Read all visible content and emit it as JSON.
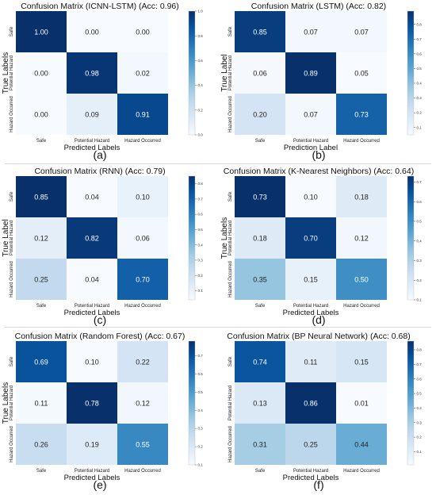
{
  "class_labels": [
    "Safe",
    "Potential Hazard",
    "Hazard Occurred"
  ],
  "colors": {
    "cmap_low": "#f7fbff",
    "cmap_high": "#08306b",
    "light_text": "#ffffff",
    "dark_text": "#222222"
  },
  "chart_data": [
    {
      "type": "heatmap",
      "title": "Confusion Matrix (ICNN-LSTM) (Acc: 0.96)",
      "xlabel": "Predicted Labels",
      "ylabel": "True Labels",
      "caption": "(a)",
      "x_categories": [
        "Safe",
        "Potential Hazard",
        "Hazard Occurred"
      ],
      "y_categories": [
        "Safe",
        "Potential Hazard",
        "Hazard Occurred"
      ],
      "values": [
        [
          1.0,
          0.0,
          0.0
        ],
        [
          0.0,
          0.98,
          0.02
        ],
        [
          0.0,
          0.09,
          0.91
        ]
      ],
      "colorbar": {
        "min": 0.0,
        "max": 1.0,
        "ticks": [
          "0.0",
          "0.2",
          "0.4",
          "0.6",
          "0.8",
          "1.0"
        ]
      }
    },
    {
      "type": "heatmap",
      "title": "Confusion Matrix (LSTM) (Acc: 0.82)",
      "xlabel": "Prediction Label",
      "ylabel": "True Label",
      "caption": "(b)",
      "x_categories": [
        "Safe",
        "Potential Hazard",
        "Hazard Occurred"
      ],
      "y_categories": [
        "Safe",
        "Potential Hazard",
        "Hazard Occurred"
      ],
      "values": [
        [
          0.85,
          0.07,
          0.07
        ],
        [
          0.06,
          0.89,
          0.05
        ],
        [
          0.2,
          0.07,
          0.73
        ]
      ],
      "colorbar": {
        "min": 0.05,
        "max": 0.89,
        "ticks": [
          "0.1",
          "0.2",
          "0.3",
          "0.4",
          "0.5",
          "0.6",
          "0.7",
          "0.8"
        ]
      }
    },
    {
      "type": "heatmap",
      "title": "Confusion Matrix (RNN) (Acc: 0.79)",
      "xlabel": "Predicted Labels",
      "ylabel": "True Label",
      "caption": "(c)",
      "x_categories": [
        "Safe",
        "Potential Hazard",
        "Hazard Occurred"
      ],
      "y_categories": [
        "Safe",
        "Potential Hazard",
        "Hazard Occurred"
      ],
      "values": [
        [
          0.85,
          0.04,
          0.1
        ],
        [
          0.12,
          0.82,
          0.06
        ],
        [
          0.25,
          0.04,
          0.7
        ]
      ],
      "colorbar": {
        "min": 0.04,
        "max": 0.85,
        "ticks": [
          "0.1",
          "0.2",
          "0.3",
          "0.4",
          "0.5",
          "0.6",
          "0.7",
          "0.8"
        ]
      }
    },
    {
      "type": "heatmap",
      "title": "Confusion Matrix (K-Nearest Neighbors) (Acc: 0.64)",
      "xlabel": "Predicted Labels",
      "ylabel": "True Labels",
      "caption": "(d)",
      "x_categories": [
        "Safe",
        "Potential Hazard",
        "Hazard Occurred"
      ],
      "y_categories": [
        "Safe",
        "Potential Hazard",
        "Hazard Occurred"
      ],
      "values": [
        [
          0.73,
          0.1,
          0.18
        ],
        [
          0.18,
          0.7,
          0.12
        ],
        [
          0.35,
          0.15,
          0.5
        ]
      ],
      "colorbar": {
        "min": 0.1,
        "max": 0.73,
        "ticks": [
          "0.1",
          "0.2",
          "0.3",
          "0.4",
          "0.5",
          "0.6",
          "0.7"
        ]
      }
    },
    {
      "type": "heatmap",
      "title": "Confusion Matrix (Random Forest) (Acc: 0.67)",
      "xlabel": "Predicted Labels",
      "ylabel": "True Labels",
      "caption": "(e)",
      "x_categories": [
        "Safe",
        "Potential Hazard",
        "Hazard Occurred"
      ],
      "y_categories": [
        "Safe",
        "Potential Hazard",
        "Hazard Occurred"
      ],
      "values": [
        [
          0.69,
          0.1,
          0.22
        ],
        [
          0.11,
          0.78,
          0.12
        ],
        [
          0.26,
          0.19,
          0.55
        ]
      ],
      "colorbar": {
        "min": 0.1,
        "max": 0.78,
        "ticks": [
          "0.1",
          "0.2",
          "0.3",
          "0.4",
          "0.5",
          "0.6",
          "0.7"
        ]
      }
    },
    {
      "type": "heatmap",
      "title": "Confusion Matrix (BP Neural Network) (Acc: 0.68)",
      "xlabel": "Predicted Labels",
      "ylabel": "",
      "caption": "(f)",
      "x_categories": [
        "Safe",
        "Potential Hazard",
        "Hazard Occurred"
      ],
      "y_categories": [
        "Safe",
        "Potential Hazard",
        "Hazard Occurred"
      ],
      "values": [
        [
          0.74,
          0.11,
          0.15
        ],
        [
          0.13,
          0.86,
          0.01
        ],
        [
          0.31,
          0.25,
          0.44
        ]
      ],
      "colorbar": {
        "min": 0.01,
        "max": 0.86,
        "ticks": [
          "0.1",
          "0.2",
          "0.3",
          "0.4",
          "0.5",
          "0.6",
          "0.7",
          "0.8"
        ]
      }
    }
  ]
}
